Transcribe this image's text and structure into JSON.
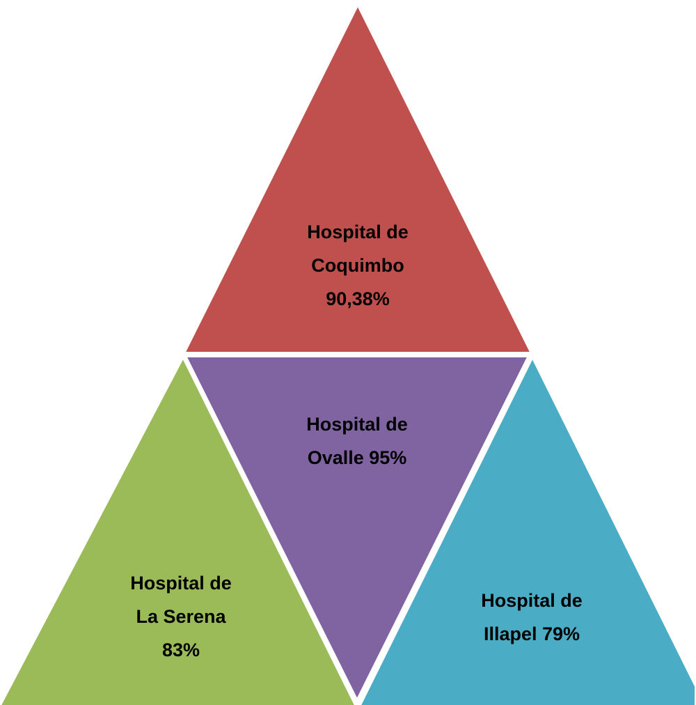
{
  "nodes": [
    {
      "lines": [
        "Hospital de",
        "Coquimbo",
        "90,38%"
      ]
    },
    {
      "lines": [
        "Hospital de",
        "Ovalle 95%"
      ]
    },
    {
      "lines": [
        "Hospital de",
        "La Serena",
        "83%"
      ]
    },
    {
      "lines": [
        "Hospital de",
        "Illapel 79%"
      ]
    }
  ]
}
